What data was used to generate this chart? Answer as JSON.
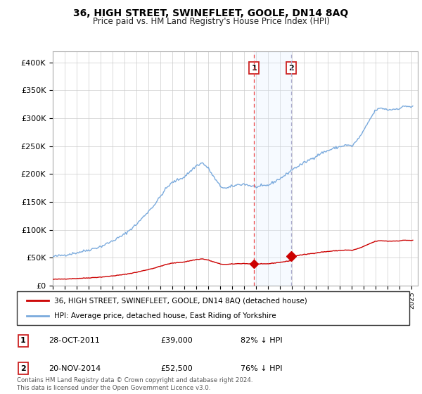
{
  "title": "36, HIGH STREET, SWINEFLEET, GOOLE, DN14 8AQ",
  "subtitle": "Price paid vs. HM Land Registry's House Price Index (HPI)",
  "hpi_color": "#7aaadd",
  "price_color": "#cc0000",
  "marker_color": "#cc0000",
  "vline1_color": "#ee4444",
  "vline2_color": "#aaaacc",
  "vspan_color": "#ddeeff",
  "background_color": "#ffffff",
  "grid_color": "#cccccc",
  "ylim": [
    0,
    420000
  ],
  "yticks": [
    0,
    50000,
    100000,
    150000,
    200000,
    250000,
    300000,
    350000,
    400000
  ],
  "ytick_labels": [
    "£0",
    "£50K",
    "£100K",
    "£150K",
    "£200K",
    "£250K",
    "£300K",
    "£350K",
    "£400K"
  ],
  "sale1_year": 2011.83,
  "sale1_price": 39000,
  "sale1_label": "1",
  "sale1_date": "28-OCT-2011",
  "sale1_amount": "£39,000",
  "sale1_pct": "82% ↓ HPI",
  "sale2_year": 2014.9,
  "sale2_price": 52500,
  "sale2_label": "2",
  "sale2_date": "20-NOV-2014",
  "sale2_amount": "£52,500",
  "sale2_pct": "76% ↓ HPI",
  "legend_line1": "36, HIGH STREET, SWINEFLEET, GOOLE, DN14 8AQ (detached house)",
  "legend_line2": "HPI: Average price, detached house, East Riding of Yorkshire",
  "footer": "Contains HM Land Registry data © Crown copyright and database right 2024.\nThis data is licensed under the Open Government Licence v3.0.",
  "xlim_start": 1995,
  "xlim_end": 2025.5
}
